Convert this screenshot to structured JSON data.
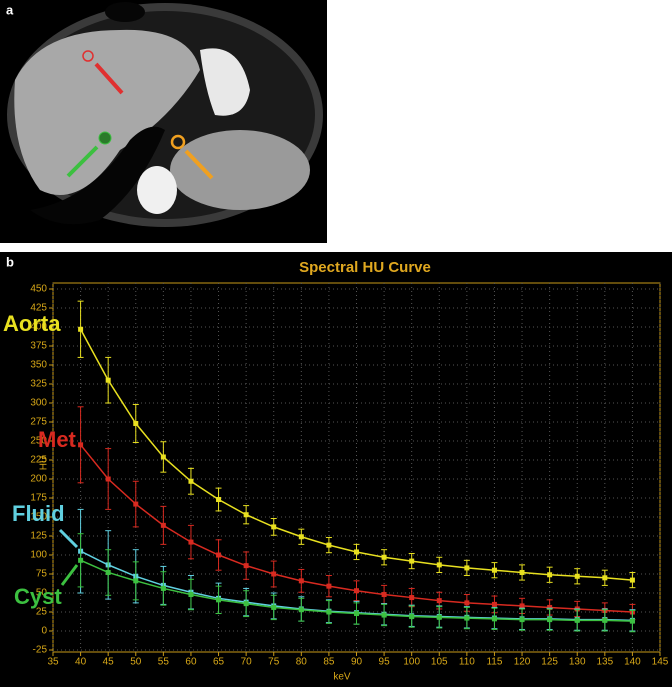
{
  "panel_labels": [
    "a",
    "b"
  ],
  "chart_data": {
    "type": "line",
    "title": "Spectral HU Curve",
    "x_label": "keV",
    "y_label": "HU",
    "x": [
      40,
      45,
      50,
      55,
      60,
      65,
      70,
      75,
      80,
      85,
      90,
      95,
      100,
      105,
      110,
      115,
      120,
      125,
      130,
      135,
      140
    ],
    "xlim": [
      35,
      145
    ],
    "xticks": [
      35,
      40,
      45,
      50,
      55,
      60,
      65,
      70,
      75,
      80,
      85,
      90,
      95,
      100,
      105,
      110,
      115,
      120,
      125,
      130,
      135,
      140,
      145
    ],
    "ylim": [
      -25,
      450
    ],
    "yticks": [
      -25,
      0,
      25,
      50,
      75,
      100,
      125,
      150,
      175,
      200,
      225,
      250,
      275,
      300,
      325,
      350,
      375,
      400,
      425,
      450
    ],
    "grid": true,
    "series": [
      {
        "name": "Aorta",
        "color": "#e8e020",
        "values": [
          397,
          330,
          273,
          229,
          197,
          173,
          153,
          137,
          124,
          113,
          104,
          97,
          92,
          87,
          83,
          80,
          77,
          74,
          72,
          70,
          67
        ],
        "errors": [
          37,
          30,
          25,
          20,
          17,
          15,
          12,
          11,
          10,
          10,
          10,
          10,
          10,
          10,
          10,
          10,
          10,
          10,
          10,
          10,
          10
        ]
      },
      {
        "name": "Met",
        "color": "#d82a20",
        "values": [
          245,
          200,
          167,
          139,
          117,
          100,
          86,
          75,
          66,
          59,
          53,
          48,
          44,
          40,
          37,
          35,
          33,
          31,
          29,
          27,
          25
        ],
        "errors": [
          50,
          40,
          30,
          25,
          22,
          20,
          18,
          17,
          15,
          14,
          13,
          12,
          12,
          11,
          11,
          11,
          10,
          10,
          10,
          10,
          10
        ]
      },
      {
        "name": "Fluid",
        "color": "#60d0e0",
        "values": [
          105,
          87,
          72,
          60,
          51,
          43,
          38,
          33,
          29,
          26,
          24,
          22,
          20,
          19,
          18,
          17,
          16,
          16,
          15,
          15,
          14
        ],
        "errors": [
          55,
          45,
          35,
          25,
          22,
          20,
          18,
          17,
          16,
          15,
          15,
          14,
          14,
          14,
          14,
          14,
          14,
          14,
          14,
          14,
          14
        ]
      },
      {
        "name": "Cyst",
        "color": "#3cc040",
        "values": [
          93,
          77,
          66,
          56,
          48,
          41,
          36,
          31,
          28,
          25,
          23,
          21,
          19,
          18,
          17,
          16,
          15,
          15,
          14,
          14,
          13
        ],
        "errors": [
          35,
          30,
          25,
          22,
          20,
          18,
          17,
          16,
          15,
          15,
          14,
          14,
          14,
          14,
          14,
          14,
          14,
          14,
          14,
          14,
          14
        ]
      }
    ]
  }
}
